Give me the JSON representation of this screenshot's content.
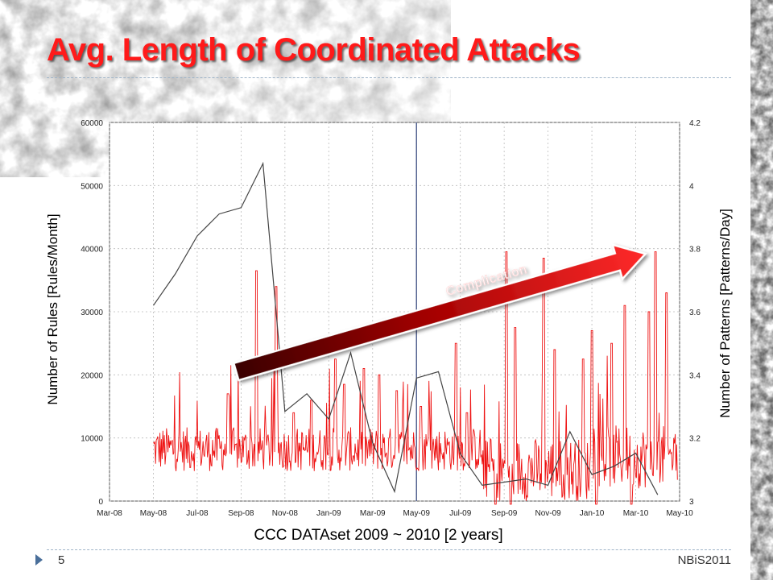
{
  "slide": {
    "title": "Avg. Length of Coordinated Attacks",
    "page_number": "5",
    "footer_text": "NBiS2011"
  },
  "chart_data": {
    "type": "line",
    "xlabel": "CCC DATAset 2009 ~ 2010 [2 years]",
    "ylabel_left": "Number of  Rules [Rules/Month]",
    "ylabel_right": "Number of Patterns [Patterns/Day]",
    "x_ticks": [
      "Mar-08",
      "May-08",
      "Jul-08",
      "Sep-08",
      "Nov-08",
      "Jan-09",
      "Mar-09",
      "May-09",
      "Jul-09",
      "Sep-09",
      "Nov-09",
      "Jan-10",
      "Mar-10",
      "May-10"
    ],
    "y_left_ticks": [
      0,
      10000,
      20000,
      30000,
      40000,
      50000,
      60000
    ],
    "y_right_ticks": [
      3,
      3.2,
      3.4,
      3.6,
      3.8,
      4,
      4.2
    ],
    "y_left_lim": [
      0,
      60000
    ],
    "y_right_lim": [
      3,
      4.2
    ],
    "grid": true,
    "vertical_marker_x": "May-09",
    "series": [
      {
        "axis": "left",
        "color": "#444444",
        "points": [
          [
            "May-08",
            31000
          ],
          [
            "Jun-08",
            36000
          ],
          [
            "Jul-08",
            42000
          ],
          [
            "Aug-08",
            45500
          ],
          [
            "Sep-08",
            46500
          ],
          [
            "Oct-08",
            53500
          ],
          [
            "Nov-08",
            14200
          ],
          [
            "Dec-08",
            17000
          ],
          [
            "Jan-09",
            13000
          ],
          [
            "Feb-09",
            23500
          ],
          [
            "Mar-09",
            9200
          ],
          [
            "Apr-09",
            1500
          ],
          [
            "May-09",
            19500
          ],
          [
            "Jun-09",
            20500
          ],
          [
            "Jul-09",
            7500
          ],
          [
            "Aug-09",
            2500
          ],
          [
            "Sep-09",
            3000
          ],
          [
            "Oct-09",
            3500
          ],
          [
            "Nov-09",
            2500
          ],
          [
            "Dec-09",
            11000
          ],
          [
            "Jan-10",
            4200
          ],
          [
            "Feb-10",
            5500
          ],
          [
            "Mar-10",
            7600
          ],
          [
            "Apr-10",
            1000
          ]
        ]
      },
      {
        "axis": "right",
        "color": "#ee1111",
        "sampling": "daily",
        "start": "May-08",
        "end": "Apr-10"
      }
    ],
    "annotation": {
      "label": "Complication",
      "from": [
        "Sep-08",
        20500
      ],
      "to": [
        "Mar-10",
        43000
      ]
    }
  }
}
